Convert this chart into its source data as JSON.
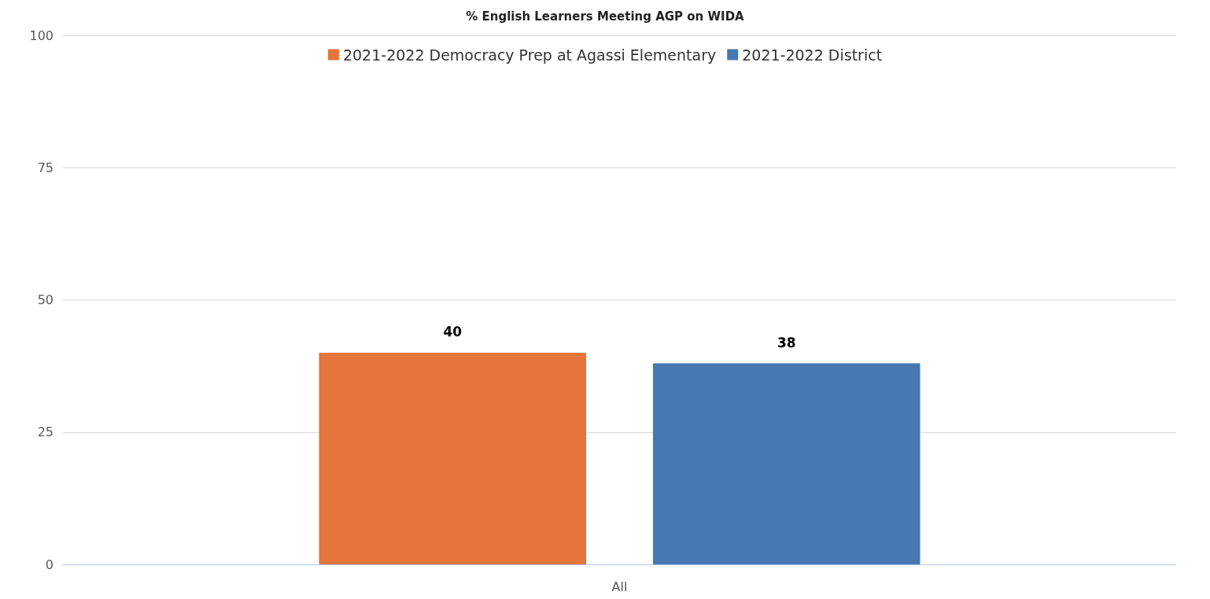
{
  "chart_data": {
    "type": "bar",
    "title": "% English Learners Meeting AGP on WIDA",
    "categories": [
      "All"
    ],
    "series": [
      {
        "name": "2021-2022 Democracy Prep at Agassi Elementary",
        "color": "#e5753a",
        "values": [
          40
        ]
      },
      {
        "name": "2021-2022 District",
        "color": "#4679b2",
        "values": [
          38
        ]
      }
    ],
    "ylim": [
      0,
      100
    ],
    "yticks": [
      0,
      25,
      50,
      75,
      100
    ],
    "grid": "y",
    "legend": "top",
    "data_labels": true
  }
}
